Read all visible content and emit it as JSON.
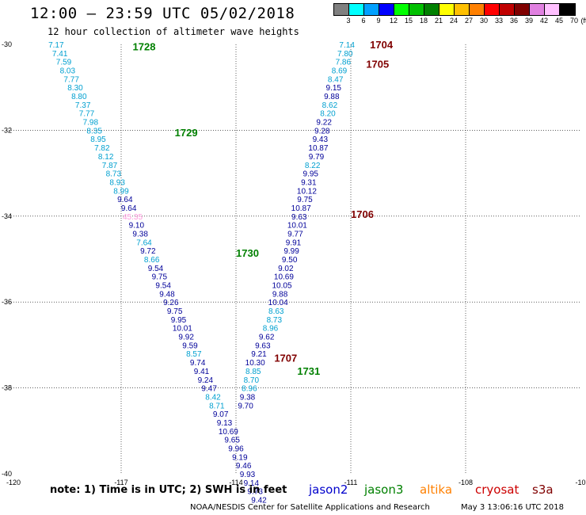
{
  "header": {
    "title": "12:00 — 23:59 UTC 05/02/2018",
    "subtitle": "12 hour collection of altimeter wave heights"
  },
  "legend": {
    "unit": "(ft)",
    "swatches": [
      "#808080",
      "#00ffff",
      "#00a0ff",
      "#0000ff",
      "#00ff00",
      "#00c000",
      "#008000",
      "#ffff00",
      "#ffc000",
      "#ff8000",
      "#ff0000",
      "#c00000",
      "#800000",
      "#e080e0",
      "#ffc0ff",
      "#000000"
    ],
    "labels": [
      "3",
      "6",
      "9",
      "12",
      "15",
      "18",
      "21",
      "24",
      "27",
      "30",
      "33",
      "36",
      "39",
      "42",
      "45",
      "70"
    ]
  },
  "axes": {
    "lon_ticks": [
      "-120",
      "-117",
      "-114",
      "-111",
      "-108",
      "-10"
    ],
    "lat_ticks": [
      "-30",
      "-32",
      "-34",
      "-36",
      "-38",
      "-40"
    ],
    "lon_range": [
      -120,
      -105
    ],
    "lat_range": [
      -30,
      -40
    ],
    "grid": true
  },
  "colors": {
    "jason2": "#0000cc",
    "jason3": "#008000",
    "altika": "#ff8000",
    "cryosat": "#cc0000",
    "s3a": "#800000",
    "light_swh": "#00a0d0",
    "dark_swh": "#000099",
    "pink_swh": "#ff99dd"
  },
  "tracks": [
    {
      "satellite": "jason3",
      "time_labels": [
        {
          "text": "1728",
          "lon": -116.7,
          "lat": -30.05
        },
        {
          "text": "1729",
          "lon": -115.6,
          "lat": -32.05
        },
        {
          "text": "1730",
          "lon": -114.0,
          "lat": -34.85
        },
        {
          "text": "1731",
          "lon": -112.4,
          "lat": -37.6
        }
      ],
      "points": [
        {
          "v": "7.17",
          "lon": -118.7,
          "lat": -30.0,
          "c": "light"
        },
        {
          "v": "7.41",
          "lon": -118.6,
          "lat": -30.2,
          "c": "light"
        },
        {
          "v": "7.59",
          "lon": -118.5,
          "lat": -30.4,
          "c": "light"
        },
        {
          "v": "8.03",
          "lon": -118.4,
          "lat": -30.6,
          "c": "light"
        },
        {
          "v": "7.77",
          "lon": -118.3,
          "lat": -30.8,
          "c": "light"
        },
        {
          "v": "8.30",
          "lon": -118.2,
          "lat": -31.0,
          "c": "light"
        },
        {
          "v": "8.80",
          "lon": -118.1,
          "lat": -31.2,
          "c": "light"
        },
        {
          "v": "7.37",
          "lon": -118.0,
          "lat": -31.4,
          "c": "light"
        },
        {
          "v": "7.77",
          "lon": -117.9,
          "lat": -31.6,
          "c": "light"
        },
        {
          "v": "7.98",
          "lon": -117.8,
          "lat": -31.8,
          "c": "light"
        },
        {
          "v": "8.35",
          "lon": -117.7,
          "lat": -32.0,
          "c": "light"
        },
        {
          "v": "8.95",
          "lon": -117.6,
          "lat": -32.2,
          "c": "light"
        },
        {
          "v": "7.82",
          "lon": -117.5,
          "lat": -32.4,
          "c": "light"
        },
        {
          "v": "8.12",
          "lon": -117.4,
          "lat": -32.6,
          "c": "light"
        },
        {
          "v": "7.87",
          "lon": -117.3,
          "lat": -32.8,
          "c": "light"
        },
        {
          "v": "8.73",
          "lon": -117.2,
          "lat": -33.0,
          "c": "light"
        },
        {
          "v": "8.93",
          "lon": -117.1,
          "lat": -33.2,
          "c": "light"
        },
        {
          "v": "8.99",
          "lon": -117.0,
          "lat": -33.4,
          "c": "light"
        },
        {
          "v": "9.64",
          "lon": -116.9,
          "lat": -33.6,
          "c": "dark"
        },
        {
          "v": "9.64",
          "lon": -116.8,
          "lat": -33.8,
          "c": "dark"
        },
        {
          "v": "45.35",
          "lon": -116.7,
          "lat": -34.0,
          "c": "pink"
        },
        {
          "v": "9.10",
          "lon": -116.6,
          "lat": -34.2,
          "c": "dark"
        },
        {
          "v": "9.38",
          "lon": -116.5,
          "lat": -34.4,
          "c": "dark"
        },
        {
          "v": "7.64",
          "lon": -116.4,
          "lat": -34.6,
          "c": "light"
        },
        {
          "v": "9.72",
          "lon": -116.3,
          "lat": -34.8,
          "c": "dark"
        },
        {
          "v": "8.66",
          "lon": -116.2,
          "lat": -35.0,
          "c": "light"
        },
        {
          "v": "9.54",
          "lon": -116.1,
          "lat": -35.2,
          "c": "dark"
        },
        {
          "v": "9.75",
          "lon": -116.0,
          "lat": -35.4,
          "c": "dark"
        },
        {
          "v": "9.54",
          "lon": -115.9,
          "lat": -35.6,
          "c": "dark"
        },
        {
          "v": "9.48",
          "lon": -115.8,
          "lat": -35.8,
          "c": "dark"
        },
        {
          "v": "9.26",
          "lon": -115.7,
          "lat": -36.0,
          "c": "dark"
        },
        {
          "v": "9.75",
          "lon": -115.6,
          "lat": -36.2,
          "c": "dark"
        },
        {
          "v": "9.95",
          "lon": -115.5,
          "lat": -36.4,
          "c": "dark"
        },
        {
          "v": "10.01",
          "lon": -115.4,
          "lat": -36.6,
          "c": "dark"
        },
        {
          "v": "9.92",
          "lon": -115.3,
          "lat": -36.8,
          "c": "dark"
        },
        {
          "v": "9.59",
          "lon": -115.2,
          "lat": -37.0,
          "c": "dark"
        },
        {
          "v": "8.57",
          "lon": -115.1,
          "lat": -37.2,
          "c": "light"
        },
        {
          "v": "9.74",
          "lon": -115.0,
          "lat": -37.4,
          "c": "dark"
        },
        {
          "v": "9.41",
          "lon": -114.9,
          "lat": -37.6,
          "c": "dark"
        },
        {
          "v": "9.24",
          "lon": -114.8,
          "lat": -37.8,
          "c": "dark"
        },
        {
          "v": "9.47",
          "lon": -114.7,
          "lat": -38.0,
          "c": "dark"
        },
        {
          "v": "8.42",
          "lon": -114.6,
          "lat": -38.2,
          "c": "light"
        },
        {
          "v": "8.71",
          "lon": -114.5,
          "lat": -38.4,
          "c": "light"
        },
        {
          "v": "9.07",
          "lon": -114.4,
          "lat": -38.6,
          "c": "dark"
        },
        {
          "v": "9.13",
          "lon": -114.3,
          "lat": -38.8,
          "c": "dark"
        },
        {
          "v": "10.69",
          "lon": -114.2,
          "lat": -39.0,
          "c": "dark"
        },
        {
          "v": "9.65",
          "lon": -114.1,
          "lat": -39.2,
          "c": "dark"
        },
        {
          "v": "9.96",
          "lon": -114.0,
          "lat": -39.4,
          "c": "dark"
        },
        {
          "v": "9.19",
          "lon": -113.9,
          "lat": -39.6,
          "c": "dark"
        },
        {
          "v": "9.46",
          "lon": -113.8,
          "lat": -39.8,
          "c": "dark"
        },
        {
          "v": "9.93",
          "lon": -113.7,
          "lat": -40.0,
          "c": "dark"
        },
        {
          "v": "9.14",
          "lon": -113.6,
          "lat": -40.2,
          "c": "dark"
        },
        {
          "v": "9.73",
          "lon": -113.5,
          "lat": -40.4,
          "c": "dark"
        },
        {
          "v": "9.42",
          "lon": -113.4,
          "lat": -40.6,
          "c": "dark"
        }
      ]
    },
    {
      "satellite": "s3a",
      "time_labels": [
        {
          "text": "1704",
          "lon": -110.5,
          "lat": -30.0
        },
        {
          "text": "1705",
          "lon": -110.6,
          "lat": -30.45
        },
        {
          "text": "1706",
          "lon": -111.0,
          "lat": -33.95
        },
        {
          "text": "1707",
          "lon": -113.0,
          "lat": -37.3
        }
      ],
      "points": [
        {
          "v": "7.14",
          "lon": -111.1,
          "lat": -30.0,
          "c": "light"
        },
        {
          "v": "7.80",
          "lon": -111.15,
          "lat": -30.2,
          "c": "light"
        },
        {
          "v": "7.86",
          "lon": -111.2,
          "lat": -30.4,
          "c": "light"
        },
        {
          "v": "8.69",
          "lon": -111.3,
          "lat": -30.6,
          "c": "light"
        },
        {
          "v": "8.47",
          "lon": -111.4,
          "lat": -30.8,
          "c": "light"
        },
        {
          "v": "9.15",
          "lon": -111.45,
          "lat": -31.0,
          "c": "dark"
        },
        {
          "v": "9.88",
          "lon": -111.5,
          "lat": -31.2,
          "c": "dark"
        },
        {
          "v": "8.62",
          "lon": -111.55,
          "lat": -31.4,
          "c": "light"
        },
        {
          "v": "8.20",
          "lon": -111.6,
          "lat": -31.6,
          "c": "light"
        },
        {
          "v": "9.22",
          "lon": -111.7,
          "lat": -31.8,
          "c": "dark"
        },
        {
          "v": "9.28",
          "lon": -111.75,
          "lat": -32.0,
          "c": "dark"
        },
        {
          "v": "9.43",
          "lon": -111.8,
          "lat": -32.2,
          "c": "dark"
        },
        {
          "v": "10.87",
          "lon": -111.85,
          "lat": -32.4,
          "c": "dark"
        },
        {
          "v": "9.79",
          "lon": -111.9,
          "lat": -32.6,
          "c": "dark"
        },
        {
          "v": "8.22",
          "lon": -112.0,
          "lat": -32.8,
          "c": "light"
        },
        {
          "v": "9.95",
          "lon": -112.05,
          "lat": -33.0,
          "c": "dark"
        },
        {
          "v": "9.31",
          "lon": -112.1,
          "lat": -33.2,
          "c": "dark"
        },
        {
          "v": "10.12",
          "lon": -112.15,
          "lat": -33.4,
          "c": "dark"
        },
        {
          "v": "9.75",
          "lon": -112.2,
          "lat": -33.6,
          "c": "dark"
        },
        {
          "v": "10.87",
          "lon": -112.3,
          "lat": -33.8,
          "c": "dark"
        },
        {
          "v": "9.63",
          "lon": -112.35,
          "lat": -34.0,
          "c": "dark"
        },
        {
          "v": "10.01",
          "lon": -112.4,
          "lat": -34.2,
          "c": "dark"
        },
        {
          "v": "9.77",
          "lon": -112.45,
          "lat": -34.4,
          "c": "dark"
        },
        {
          "v": "9.91",
          "lon": -112.5,
          "lat": -34.6,
          "c": "dark"
        },
        {
          "v": "9.99",
          "lon": -112.55,
          "lat": -34.8,
          "c": "dark"
        },
        {
          "v": "9.50",
          "lon": -112.6,
          "lat": -35.0,
          "c": "dark"
        },
        {
          "v": "9.02",
          "lon": -112.7,
          "lat": -35.2,
          "c": "dark"
        },
        {
          "v": "10.69",
          "lon": -112.75,
          "lat": -35.4,
          "c": "dark"
        },
        {
          "v": "10.05",
          "lon": -112.8,
          "lat": -35.6,
          "c": "dark"
        },
        {
          "v": "9.88",
          "lon": -112.85,
          "lat": -35.8,
          "c": "dark"
        },
        {
          "v": "10.04",
          "lon": -112.9,
          "lat": -36.0,
          "c": "dark"
        },
        {
          "v": "8.63",
          "lon": -112.95,
          "lat": -36.2,
          "c": "light"
        },
        {
          "v": "8.73",
          "lon": -113.0,
          "lat": -36.4,
          "c": "light"
        },
        {
          "v": "8.96",
          "lon": -113.1,
          "lat": -36.6,
          "c": "light"
        },
        {
          "v": "9.62",
          "lon": -113.2,
          "lat": -36.8,
          "c": "dark"
        },
        {
          "v": "9.63",
          "lon": -113.3,
          "lat": -37.0,
          "c": "dark"
        },
        {
          "v": "9.21",
          "lon": -113.4,
          "lat": -37.2,
          "c": "dark"
        },
        {
          "v": "10.30",
          "lon": -113.5,
          "lat": -37.4,
          "c": "dark"
        },
        {
          "v": "8.85",
          "lon": -113.55,
          "lat": -37.6,
          "c": "light"
        },
        {
          "v": "8.70",
          "lon": -113.6,
          "lat": -37.8,
          "c": "light"
        },
        {
          "v": "8.96",
          "lon": -113.65,
          "lat": -38.0,
          "c": "light"
        },
        {
          "v": "9.38",
          "lon": -113.7,
          "lat": -38.2,
          "c": "dark"
        },
        {
          "v": "9.70",
          "lon": -113.75,
          "lat": -38.4,
          "c": "dark"
        }
      ]
    }
  ],
  "note": "note:  1) Time is in UTC;  2) SWH is in feet",
  "satellites": {
    "jason2": "jason2",
    "jason3": "jason3",
    "altika": "altika",
    "cryosat": "cryosat",
    "s3a": "s3a"
  },
  "footer": {
    "credit": "NOAA/NESDIS Center for Satellite Applications and Research",
    "timestamp": "May  3 13:06:16 UTC 2018"
  }
}
